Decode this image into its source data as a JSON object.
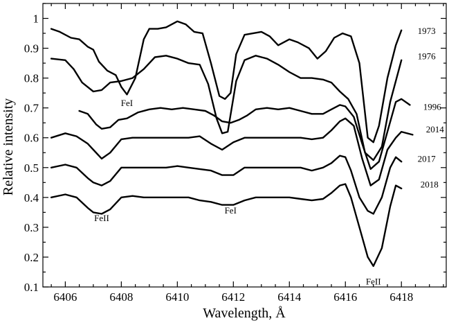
{
  "chart_data": {
    "type": "line",
    "title": "",
    "xlabel": "Wavelength, Å",
    "ylabel": "Relative intensity",
    "xlim": [
      6405.2,
      6419.6
    ],
    "ylim": [
      0.1,
      1.05
    ],
    "grid": false,
    "x_ticks": [
      6406,
      6408,
      6410,
      6412,
      6414,
      6416,
      6418
    ],
    "x_tick_labels": [
      "6406",
      "6408",
      "6410",
      "6412",
      "6414",
      "6416",
      "6418"
    ],
    "y_ticks": [
      0.1,
      0.2,
      0.3,
      0.4,
      0.5,
      0.6,
      0.7,
      0.8,
      0.9,
      1.0
    ],
    "y_tick_labels": [
      "0.1",
      "0.2",
      "0.3",
      "0.4",
      "0.5",
      "0.6",
      "0.7",
      "0.8",
      "0.9",
      "1"
    ],
    "annotations": [
      {
        "text": "FeI",
        "x": 6408.2,
        "y": 0.715
      },
      {
        "text": "FeII",
        "x": 6407.3,
        "y": 0.33
      },
      {
        "text": "FeI",
        "x": 6411.9,
        "y": 0.355
      },
      {
        "text": "FeII",
        "x": 6417.0,
        "y": 0.118
      }
    ],
    "series": [
      {
        "name": "1973",
        "label_pos": [
          6418.9,
          0.957
        ],
        "x": [
          6405.5,
          6405.8,
          6406.2,
          6406.5,
          6406.8,
          6407.0,
          6407.2,
          6407.5,
          6407.8,
          6408.0,
          6408.2,
          6408.5,
          6408.8,
          6409.0,
          6409.3,
          6409.6,
          6410.0,
          6410.3,
          6410.6,
          6410.9,
          6411.2,
          6411.5,
          6411.7,
          6411.9,
          6412.1,
          6412.4,
          6412.7,
          6413.0,
          6413.3,
          6413.6,
          6414.0,
          6414.3,
          6414.7,
          6415.0,
          6415.3,
          6415.6,
          6415.9,
          6416.2,
          6416.5,
          6416.8,
          6417.0,
          6417.2,
          6417.5,
          6417.8,
          6418.0
        ],
        "values": [
          0.965,
          0.955,
          0.935,
          0.93,
          0.905,
          0.895,
          0.855,
          0.825,
          0.81,
          0.77,
          0.745,
          0.8,
          0.93,
          0.965,
          0.965,
          0.97,
          0.99,
          0.98,
          0.955,
          0.95,
          0.85,
          0.74,
          0.73,
          0.75,
          0.88,
          0.945,
          0.95,
          0.955,
          0.94,
          0.91,
          0.93,
          0.92,
          0.9,
          0.865,
          0.89,
          0.935,
          0.95,
          0.94,
          0.85,
          0.6,
          0.585,
          0.64,
          0.8,
          0.91,
          0.96
        ]
      },
      {
        "name": "1976",
        "label_pos": [
          6418.9,
          0.872
        ],
        "x": [
          6405.5,
          6406.0,
          6406.3,
          6406.6,
          6407.0,
          6407.3,
          6407.6,
          6408.0,
          6408.4,
          6408.8,
          6409.2,
          6409.6,
          6410.0,
          6410.4,
          6410.8,
          6411.1,
          6411.4,
          6411.6,
          6411.8,
          6412.1,
          6412.4,
          6412.8,
          6413.2,
          6413.6,
          6414.0,
          6414.4,
          6414.8,
          6415.2,
          6415.5,
          6415.8,
          6416.1,
          6416.4,
          6416.7,
          6417.0,
          6417.3,
          6417.6,
          6418.0
        ],
        "values": [
          0.865,
          0.86,
          0.83,
          0.785,
          0.755,
          0.76,
          0.785,
          0.79,
          0.8,
          0.83,
          0.87,
          0.875,
          0.865,
          0.85,
          0.845,
          0.78,
          0.665,
          0.615,
          0.62,
          0.79,
          0.86,
          0.875,
          0.865,
          0.845,
          0.82,
          0.8,
          0.8,
          0.795,
          0.785,
          0.755,
          0.73,
          0.68,
          0.55,
          0.525,
          0.57,
          0.72,
          0.86
        ]
      },
      {
        "name": "1996",
        "label_pos": [
          6419.1,
          0.703
        ],
        "x": [
          6406.5,
          6406.8,
          6407.1,
          6407.3,
          6407.6,
          6407.9,
          6408.2,
          6408.6,
          6409.0,
          6409.4,
          6409.8,
          6410.2,
          6410.6,
          6411.0,
          6411.3,
          6411.6,
          6411.9,
          6412.2,
          6412.5,
          6412.8,
          6413.2,
          6413.6,
          6414.0,
          6414.4,
          6414.8,
          6415.2,
          6415.5,
          6415.8,
          6416.0,
          6416.3,
          6416.6,
          6416.9,
          6417.2,
          6417.5,
          6417.8,
          6418.0,
          6418.3
        ],
        "values": [
          0.69,
          0.68,
          0.645,
          0.63,
          0.635,
          0.66,
          0.665,
          0.685,
          0.695,
          0.7,
          0.695,
          0.7,
          0.695,
          0.69,
          0.675,
          0.655,
          0.65,
          0.66,
          0.675,
          0.695,
          0.7,
          0.695,
          0.7,
          0.69,
          0.68,
          0.68,
          0.695,
          0.71,
          0.705,
          0.67,
          0.58,
          0.495,
          0.52,
          0.62,
          0.72,
          0.73,
          0.71
        ]
      },
      {
        "name": "2014",
        "label_pos": [
          6419.2,
          0.627
        ],
        "x": [
          6405.5,
          6406.0,
          6406.4,
          6406.8,
          6407.0,
          6407.3,
          6407.6,
          6408.0,
          6408.4,
          6408.8,
          6409.2,
          6409.6,
          6410.0,
          6410.4,
          6410.8,
          6411.2,
          6411.6,
          6412.0,
          6412.4,
          6412.8,
          6413.2,
          6413.6,
          6414.0,
          6414.4,
          6414.8,
          6415.2,
          6415.5,
          6415.8,
          6416.0,
          6416.3,
          6416.6,
          6416.9,
          6417.2,
          6417.5,
          6417.8,
          6418.0,
          6418.4
        ],
        "values": [
          0.6,
          0.615,
          0.605,
          0.58,
          0.56,
          0.53,
          0.55,
          0.595,
          0.6,
          0.6,
          0.6,
          0.6,
          0.6,
          0.6,
          0.605,
          0.58,
          0.56,
          0.585,
          0.6,
          0.6,
          0.6,
          0.6,
          0.6,
          0.6,
          0.595,
          0.6,
          0.625,
          0.655,
          0.665,
          0.64,
          0.53,
          0.44,
          0.46,
          0.56,
          0.6,
          0.62,
          0.61
        ]
      },
      {
        "name": "2017",
        "label_pos": [
          6418.9,
          0.528
        ],
        "x": [
          6405.5,
          6406.0,
          6406.4,
          6406.8,
          6407.0,
          6407.3,
          6407.6,
          6408.0,
          6408.4,
          6408.8,
          6409.2,
          6409.6,
          6410.0,
          6410.4,
          6410.8,
          6411.2,
          6411.6,
          6412.0,
          6412.4,
          6412.8,
          6413.2,
          6413.6,
          6414.0,
          6414.4,
          6414.8,
          6415.2,
          6415.5,
          6415.8,
          6416.0,
          6416.2,
          6416.5,
          6416.8,
          6417.0,
          6417.3,
          6417.6,
          6417.8,
          6418.0
        ],
        "values": [
          0.5,
          0.51,
          0.5,
          0.465,
          0.45,
          0.44,
          0.455,
          0.5,
          0.5,
          0.5,
          0.5,
          0.5,
          0.505,
          0.5,
          0.495,
          0.49,
          0.475,
          0.475,
          0.5,
          0.5,
          0.5,
          0.5,
          0.5,
          0.5,
          0.49,
          0.5,
          0.515,
          0.54,
          0.535,
          0.49,
          0.4,
          0.355,
          0.345,
          0.4,
          0.5,
          0.535,
          0.52
        ]
      },
      {
        "name": "2018",
        "label_pos": [
          6419.0,
          0.443
        ],
        "x": [
          6405.5,
          6406.0,
          6406.4,
          6406.8,
          6407.0,
          6407.3,
          6407.6,
          6408.0,
          6408.4,
          6408.8,
          6409.2,
          6409.6,
          6410.0,
          6410.4,
          6410.8,
          6411.2,
          6411.6,
          6412.0,
          6412.4,
          6412.8,
          6413.2,
          6413.6,
          6414.0,
          6414.4,
          6414.8,
          6415.2,
          6415.5,
          6415.8,
          6416.0,
          6416.2,
          6416.5,
          6416.8,
          6417.0,
          6417.3,
          6417.6,
          6417.8,
          6418.0
        ],
        "values": [
          0.4,
          0.41,
          0.4,
          0.365,
          0.35,
          0.345,
          0.36,
          0.4,
          0.405,
          0.4,
          0.4,
          0.4,
          0.4,
          0.4,
          0.39,
          0.385,
          0.375,
          0.375,
          0.39,
          0.4,
          0.4,
          0.4,
          0.4,
          0.395,
          0.39,
          0.395,
          0.415,
          0.44,
          0.445,
          0.4,
          0.3,
          0.2,
          0.17,
          0.23,
          0.37,
          0.44,
          0.43
        ]
      }
    ]
  }
}
